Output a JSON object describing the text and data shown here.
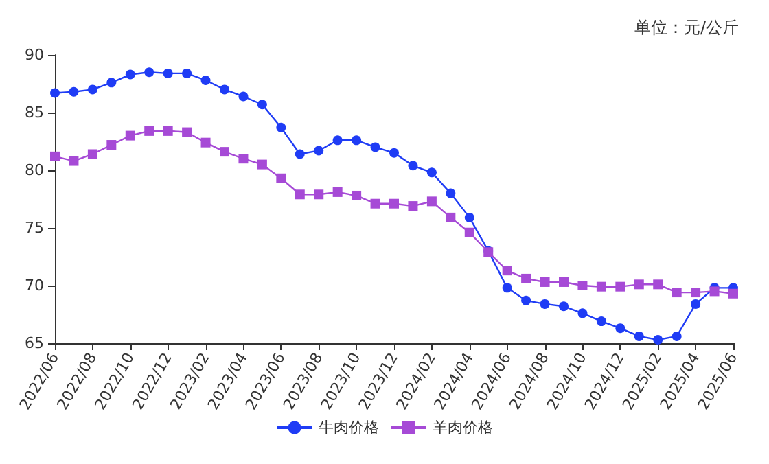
{
  "chart_data": {
    "type": "line",
    "annotations": [
      "单位：元/公斤"
    ],
    "categories": [
      "2022/06",
      null,
      "2022/08",
      null,
      "2022/10",
      null,
      "2022/12",
      null,
      "2023/02",
      null,
      "2023/04",
      null,
      "2023/06",
      null,
      "2023/08",
      null,
      "2023/10",
      null,
      "2023/12",
      null,
      "2024/02",
      null,
      "2024/04",
      null,
      "2024/06",
      null,
      "2024/08",
      null,
      "2024/10",
      null,
      "2024/12",
      null,
      "2025/02",
      null,
      "2025/04",
      null,
      "2025/06"
    ],
    "series": [
      {
        "name": "牛肉价格",
        "color": "#1f3cf5",
        "marker": "circle",
        "values": [
          86.7,
          86.8,
          87.0,
          87.6,
          88.3,
          88.5,
          88.4,
          88.4,
          87.8,
          87.0,
          86.4,
          85.7,
          83.7,
          81.4,
          81.7,
          82.6,
          82.6,
          82.0,
          81.5,
          80.4,
          79.8,
          78.0,
          75.9,
          73.0,
          69.8,
          68.7,
          68.4,
          68.2,
          67.6,
          66.9,
          66.3,
          65.6,
          65.3,
          65.6,
          68.4,
          69.8,
          69.8
        ]
      },
      {
        "name": "羊肉价格",
        "color": "#a64ad6",
        "marker": "square",
        "values": [
          81.2,
          80.8,
          81.4,
          82.2,
          83.0,
          83.4,
          83.4,
          83.3,
          82.4,
          81.6,
          81.0,
          80.5,
          79.3,
          77.9,
          77.9,
          78.1,
          77.8,
          77.1,
          77.1,
          76.9,
          77.3,
          75.9,
          74.6,
          72.9,
          71.3,
          70.6,
          70.3,
          70.3,
          70.0,
          69.9,
          69.9,
          70.1,
          70.1,
          69.4,
          69.4,
          69.5,
          69.3
        ]
      }
    ],
    "ylim": [
      65,
      90
    ],
    "yticks": [
      65,
      70,
      75,
      80,
      85,
      90
    ],
    "grid": false,
    "legend": "bottom",
    "line_style": "solid"
  }
}
